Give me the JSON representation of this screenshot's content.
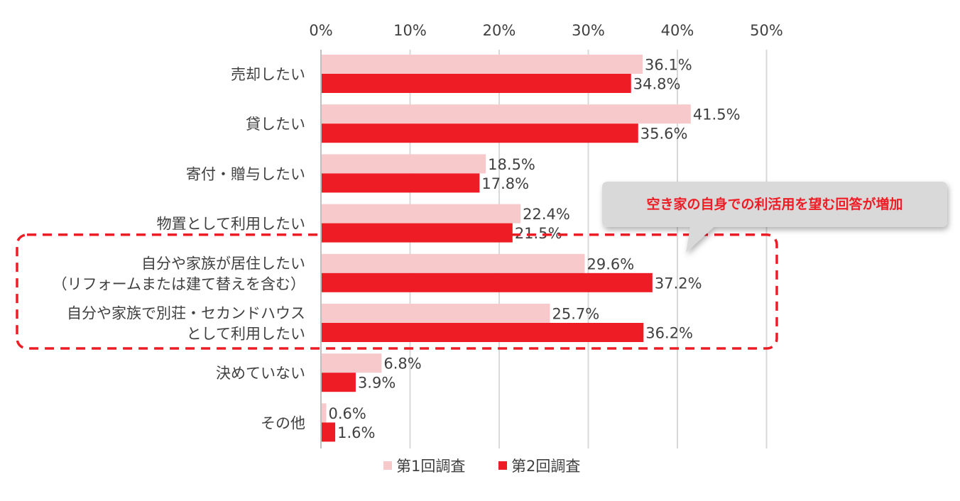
{
  "chart_data": {
    "type": "bar",
    "orientation": "horizontal",
    "categories": [
      [
        "売却したい"
      ],
      [
        "貸したい"
      ],
      [
        "寄付・贈与したい"
      ],
      [
        "物置として利用したい"
      ],
      [
        "自分や家族が居住したい",
        "（リフォームまたは建て替えを含む）"
      ],
      [
        "自分や家族で別荘・セカンドハウス",
        "として利用したい"
      ],
      [
        "決めていない"
      ],
      [
        "その他"
      ]
    ],
    "series": [
      {
        "name": "第1回調査",
        "color": "#f8c9cb",
        "values": [
          36.1,
          41.5,
          18.5,
          22.4,
          29.6,
          25.7,
          6.8,
          0.6
        ]
      },
      {
        "name": "第2回調査",
        "color": "#ee1c25",
        "values": [
          34.8,
          35.6,
          17.8,
          21.5,
          37.2,
          36.2,
          3.9,
          1.6
        ]
      }
    ],
    "data_labels": [
      [
        "36.1%",
        "41.5%",
        "18.5%",
        "22.4%",
        "29.6%",
        "25.7%",
        "6.8%",
        "0.6%"
      ],
      [
        "34.8%",
        "35.6%",
        "17.8%",
        "21.5%",
        "37.2%",
        "36.2%",
        "3.9%",
        "1.6%"
      ]
    ],
    "xlim": [
      0,
      50
    ],
    "x_ticks": [
      "0%",
      "10%",
      "20%",
      "30%",
      "40%",
      "50%"
    ],
    "grid": true,
    "axis_position": "top",
    "legend_position": "bottom",
    "annotation": {
      "text": "空き家の自身での利活用を望む回答が増加",
      "color": "#ee1c25",
      "highlight_categories": [
        4,
        5
      ]
    }
  }
}
